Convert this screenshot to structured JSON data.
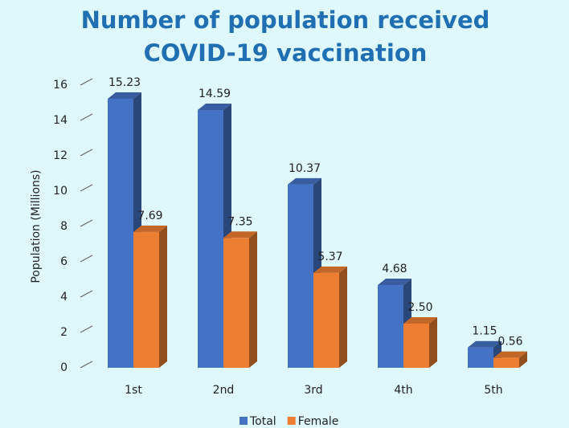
{
  "chart_data": {
    "type": "bar3d",
    "title": "Number of population received",
    "subtitle": "COVID-19 vaccination",
    "y_label": "Population (Millions)",
    "categories": [
      "1st",
      "2nd",
      "3rd",
      "4th",
      "5th"
    ],
    "series": [
      {
        "name": "Total",
        "color": "#4472c4",
        "values": [
          15.23,
          14.59,
          10.37,
          4.68,
          1.15
        ]
      },
      {
        "name": "Female",
        "color": "#ed7d31",
        "values": [
          7.69,
          7.35,
          5.37,
          2.5,
          0.56
        ],
        "value_labels": [
          "7.69",
          "7.35",
          "5.37",
          "2.50",
          "0.56"
        ]
      }
    ],
    "ylim": [
      0,
      16
    ],
    "yticks": [
      0,
      2,
      4,
      6,
      8,
      10,
      12,
      14,
      16
    ],
    "legend": "bottom"
  }
}
